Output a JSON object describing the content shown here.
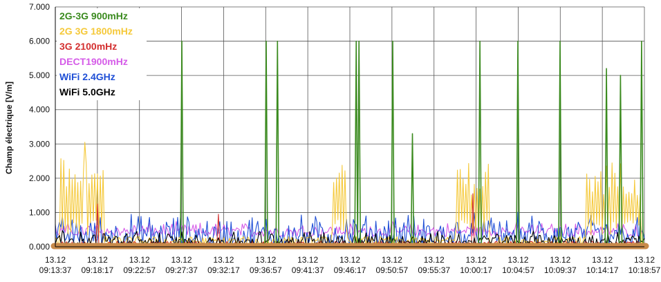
{
  "chart_data": {
    "type": "line",
    "ylabel": "Champ électrique [V/m]",
    "ylim": [
      0,
      7
    ],
    "yticks": [
      "0.000",
      "1.000",
      "2.000",
      "3.000",
      "4.000",
      "5.000",
      "6.000",
      "7.000"
    ],
    "xticks": [
      {
        "date": "13.12",
        "time": "09:13:37"
      },
      {
        "date": "13.12",
        "time": "09:18:17"
      },
      {
        "date": "13.12",
        "time": "09:22:57"
      },
      {
        "date": "13.12",
        "time": "09:27:37"
      },
      {
        "date": "13.12",
        "time": "09:32:17"
      },
      {
        "date": "13.12",
        "time": "09:36:57"
      },
      {
        "date": "13.12",
        "time": "09:41:37"
      },
      {
        "date": "13.12",
        "time": "09:46:17"
      },
      {
        "date": "13.12",
        "time": "09:50:57"
      },
      {
        "date": "13.12",
        "time": "09:55:37"
      },
      {
        "date": "13.12",
        "time": "10:00:17"
      },
      {
        "date": "13.12",
        "time": "10:04:57"
      },
      {
        "date": "13.12",
        "time": "10:09:37"
      },
      {
        "date": "13.12",
        "time": "10:14:17"
      },
      {
        "date": "13.12",
        "time": "10:18:57"
      }
    ],
    "x_range": [
      "09:13:37",
      "10:18:57"
    ],
    "grid": true,
    "legend_position": "top-left",
    "series": [
      {
        "name": "2G-3G 900mHz",
        "color": "#3a8a1e",
        "baseline": 0.05,
        "spikes": [
          {
            "t": "09:27:37",
            "v": 6.0
          },
          {
            "t": "09:36:57",
            "v": 6.0
          },
          {
            "t": "09:38:17",
            "v": 6.0
          },
          {
            "t": "09:47:00",
            "v": 6.0
          },
          {
            "t": "09:47:20",
            "v": 6.0
          },
          {
            "t": "09:51:00",
            "v": 6.0
          },
          {
            "t": "09:53:10",
            "v": 3.3
          },
          {
            "t": "10:00:40",
            "v": 6.0
          },
          {
            "t": "10:04:57",
            "v": 6.0
          },
          {
            "t": "10:09:37",
            "v": 6.0
          },
          {
            "t": "10:14:40",
            "v": 5.2
          },
          {
            "t": "10:16:20",
            "v": 5.0
          },
          {
            "t": "10:18:40",
            "v": 6.0
          }
        ]
      },
      {
        "name": "2G 3G 1800mHz",
        "color": "#f5c93a",
        "baseline": 0.15,
        "bursts": [
          {
            "start": "09:14:10",
            "end": "09:19:00",
            "peak": 2.6,
            "max": {
              "t": "09:16:50",
              "v": 3.05
            }
          },
          {
            "start": "09:44:20",
            "end": "09:46:00",
            "peak": 2.4
          },
          {
            "start": "09:58:00",
            "end": "10:01:40",
            "peak": 2.5
          },
          {
            "start": "10:12:30",
            "end": "10:18:30",
            "peak": 2.5
          }
        ]
      },
      {
        "name": "3G 2100mHz",
        "color": "#d32f2f",
        "baseline": 0.08,
        "spikes": [
          {
            "t": "09:18:17",
            "v": 1.25
          },
          {
            "t": "09:31:40",
            "v": 0.95
          },
          {
            "t": "10:00:00",
            "v": 1.55
          }
        ]
      },
      {
        "name": "DECT1900mHz",
        "color": "#d55be8",
        "baseline": 0.55,
        "band": [
          0.3,
          0.75
        ]
      },
      {
        "name": "WiFi 2.4GHz",
        "color": "#1f4fd6",
        "baseline": 0.25,
        "band": [
          0.0,
          1.05
        ]
      },
      {
        "name": "WiFi 5.0GHz",
        "color": "#000000",
        "baseline": 0.05,
        "band": [
          0.0,
          0.5
        ]
      }
    ],
    "extra_color": "#c88a4a"
  }
}
